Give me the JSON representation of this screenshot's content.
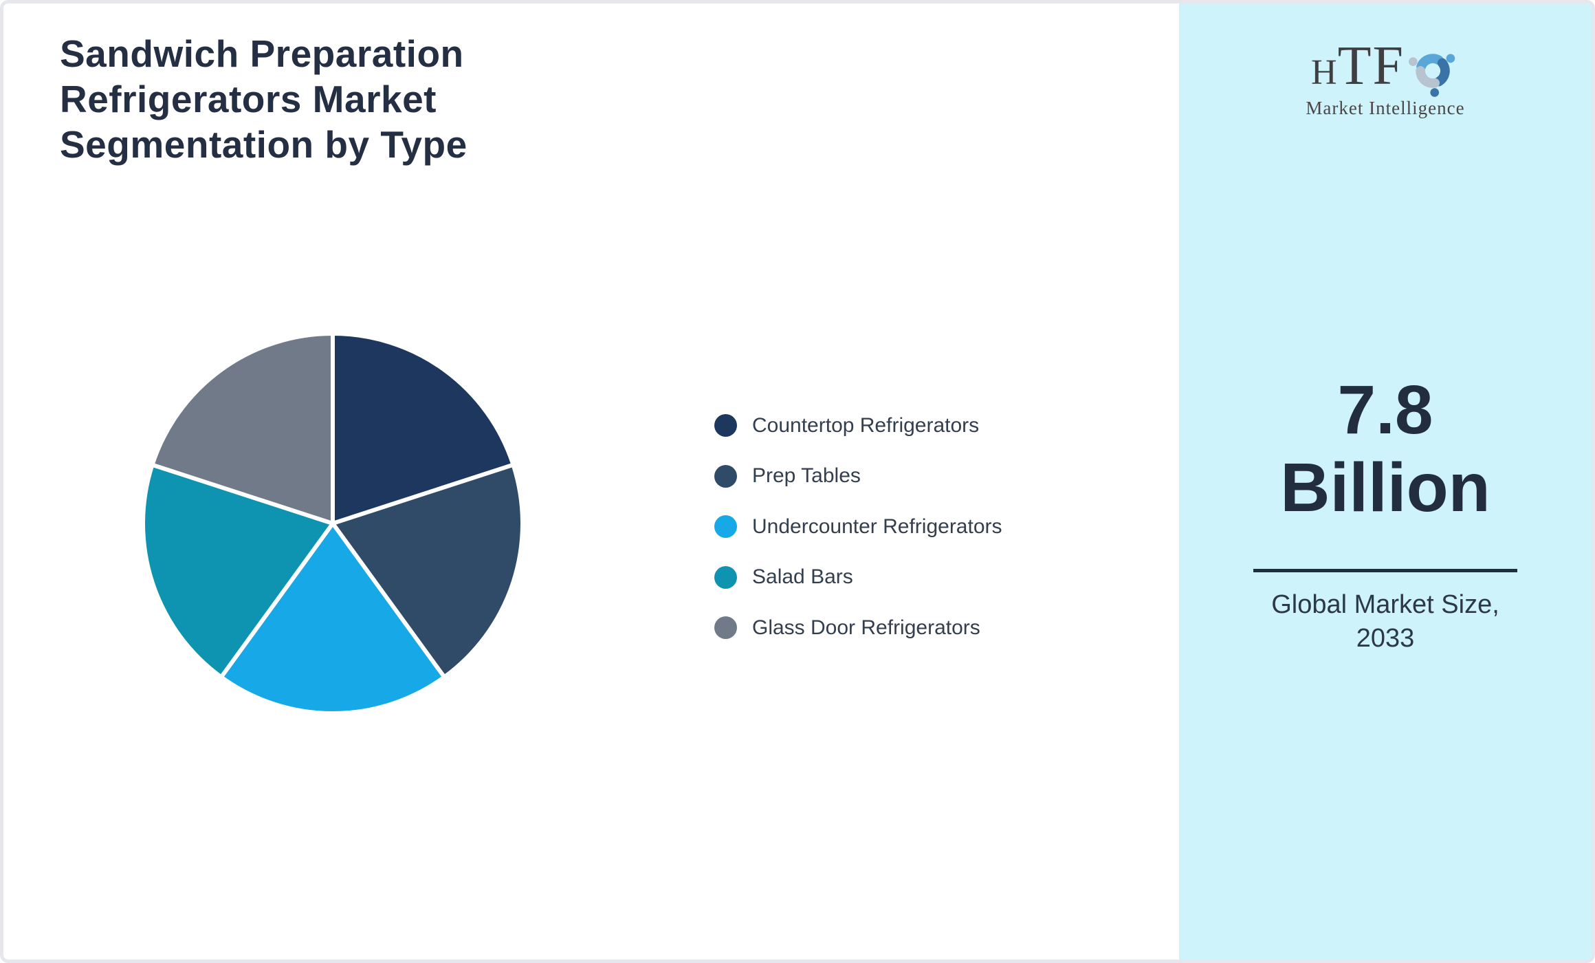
{
  "page": {
    "title": "Sandwich Preparation\nRefrigerators Market\nSegmentation by Type"
  },
  "logo": {
    "brand_first_letter": "H",
    "brand_rest": "TF",
    "tagline": "Market Intelligence",
    "swirl_colors": [
      "#58a7d8",
      "#3a74a6",
      "#b7c3cf"
    ]
  },
  "chart_data": {
    "type": "pie",
    "title": "Sandwich Preparation Refrigerators Market Segmentation by Type",
    "categories": [
      "Countertop Refrigerators",
      "Prep Tables",
      "Undercounter Refrigerators",
      "Salad Bars",
      "Glass Door Refrigerators"
    ],
    "values": [
      20,
      20,
      20,
      20,
      20
    ],
    "unit": "percent_share",
    "colors": [
      "#1e375e",
      "#2f4b68",
      "#17a8e8",
      "#0e94b0",
      "#707a89"
    ],
    "start_angle": "top",
    "direction": "clockwise",
    "legend_position": "right",
    "slice_divider_color": "#ffffff"
  },
  "stat_panel": {
    "value": "7.8\nBillion",
    "caption": "Global Market Size,\n2033",
    "background_color": "#cef3fb",
    "accent_text_color": "#222e3f",
    "divider_color": "#1f2d3d"
  }
}
